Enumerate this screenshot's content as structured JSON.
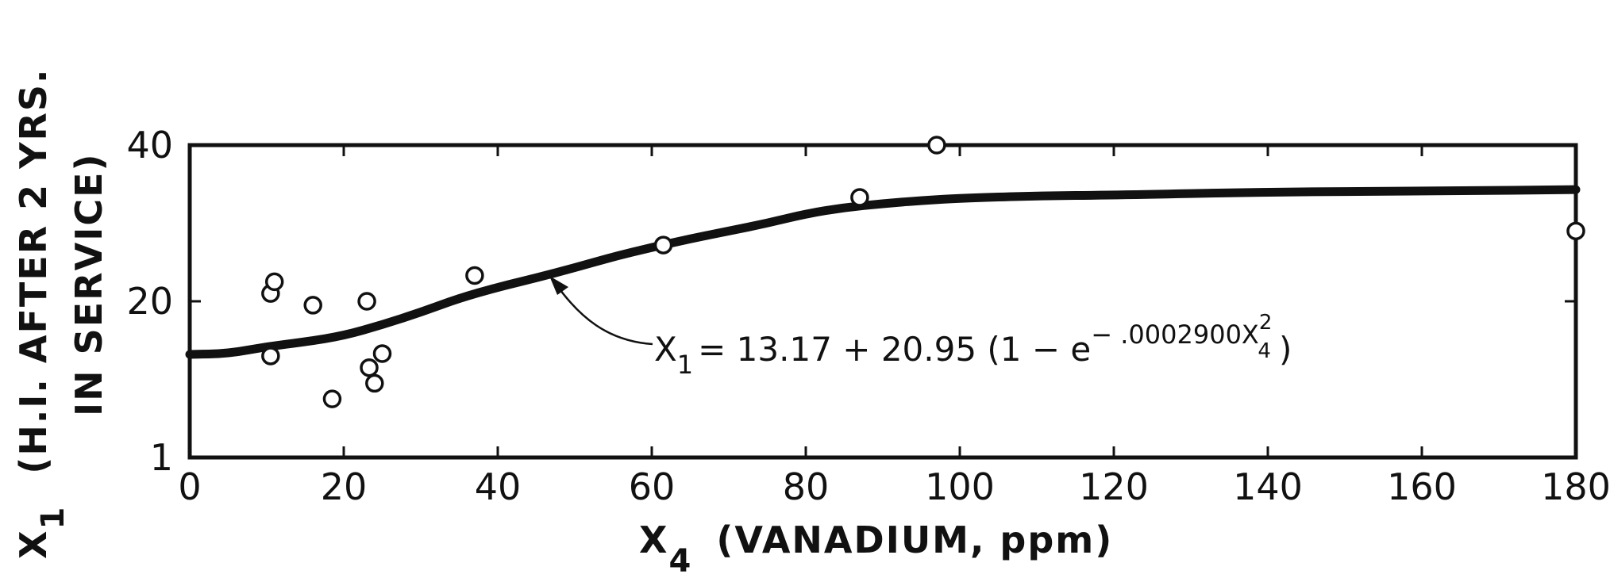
{
  "chart_data": {
    "type": "scatter",
    "title": "",
    "xlabel": {
      "symbol": "X",
      "subscript": "4",
      "text": "(VANADIUM, ppm)"
    },
    "ylabel": {
      "symbol": "X",
      "subscript": "1",
      "line1": "(H.I.  AFTER  2  YRS.",
      "line2": "IN  SERVICE)"
    },
    "xlim": [
      0,
      180
    ],
    "ylim": [
      0,
      40
    ],
    "x_ticks": [
      "0",
      "20",
      "40",
      "60",
      "80",
      "100",
      "120",
      "140",
      "160",
      "180"
    ],
    "y_ticks": [
      "1",
      "20",
      "40"
    ],
    "grid": false,
    "series": [
      {
        "kind": "points",
        "marker": "open-circle",
        "x": [
          10.5,
          11,
          10.5,
          16,
          23,
          23.3,
          24,
          25,
          18.5,
          37,
          61.5,
          87,
          97,
          180
        ],
        "y": [
          21.0,
          22.5,
          13.0,
          19.5,
          20.0,
          11.5,
          9.5,
          13.3,
          7.5,
          23.3,
          27.2,
          33.3,
          40.0,
          29.0
        ]
      },
      {
        "kind": "fitted-curve",
        "equation": {
          "lhs_symbol": "X",
          "lhs_subscript": "1",
          "body": "= 13.17  +  20.95 (1 − e",
          "exponent": "− .0002900X",
          "exp_var_super": "2",
          "exp_var_sub": "4",
          "tail": ")"
        },
        "x": [
          0,
          5,
          10,
          15,
          20,
          25,
          30,
          35,
          40,
          45,
          50,
          55,
          60,
          65,
          70,
          75,
          80,
          85,
          90,
          95,
          100,
          110,
          120,
          140,
          160,
          180
        ],
        "y": [
          13.2,
          13.3,
          14.2,
          14.8,
          15.6,
          17.0,
          18.6,
          20.4,
          21.8,
          23.0,
          24.3,
          25.7,
          26.9,
          28.0,
          29.0,
          30.0,
          31.2,
          32.0,
          32.5,
          32.9,
          33.2,
          33.5,
          33.6,
          34.0,
          34.1,
          34.3
        ]
      }
    ]
  }
}
